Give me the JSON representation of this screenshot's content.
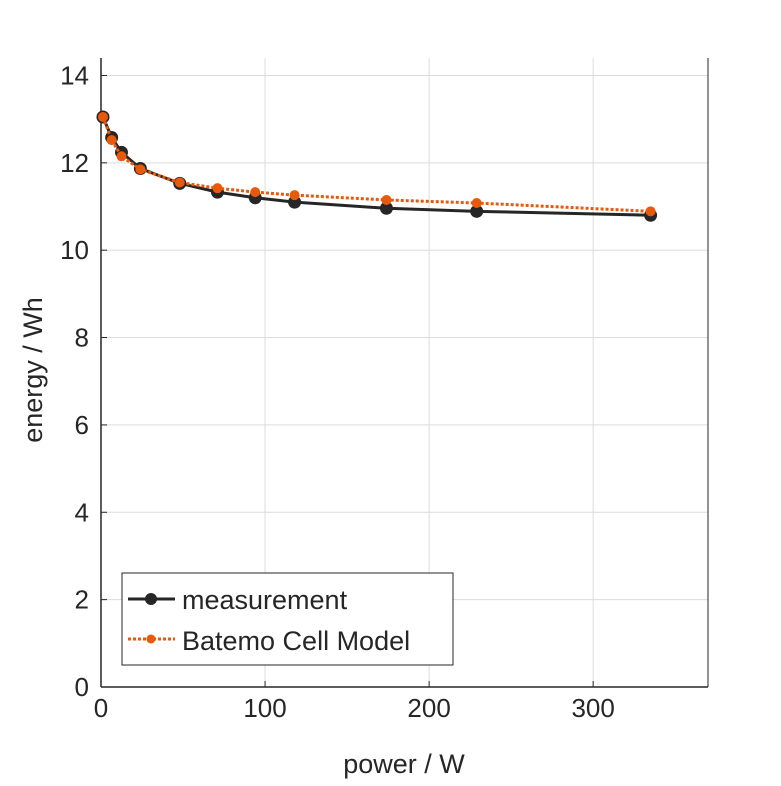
{
  "chart_data": {
    "type": "line",
    "title": "",
    "xlabel": "power / W",
    "ylabel": "energy / Wh",
    "xlim": [
      0,
      370
    ],
    "ylim": [
      0,
      14.4
    ],
    "xticks": [
      0,
      100,
      200,
      300
    ],
    "yticks": [
      0,
      2,
      4,
      6,
      8,
      10,
      12,
      14
    ],
    "xtick_labels": [
      "0",
      "100",
      "200",
      "300"
    ],
    "ytick_labels": [
      "0",
      "2",
      "4",
      "6",
      "8",
      "10",
      "12",
      "14"
    ],
    "grid": true,
    "legend_position": "bottom-left",
    "series": [
      {
        "name": "measurement",
        "color": "#262626",
        "style": "solid",
        "x": [
          1.2,
          6.5,
          12.5,
          24,
          48,
          71,
          94,
          118,
          174,
          229,
          335
        ],
        "y": [
          13.05,
          12.58,
          12.24,
          11.87,
          11.53,
          11.33,
          11.2,
          11.1,
          10.96,
          10.89,
          10.8
        ]
      },
      {
        "name": "Batemo Cell Model",
        "color": "#E8590C",
        "style": "dotted",
        "x": [
          1.2,
          6.5,
          12.5,
          24,
          48,
          71,
          94,
          118,
          174,
          229,
          335
        ],
        "y": [
          13.05,
          12.52,
          12.15,
          11.85,
          11.55,
          11.42,
          11.33,
          11.26,
          11.15,
          11.08,
          10.89
        ]
      }
    ]
  }
}
